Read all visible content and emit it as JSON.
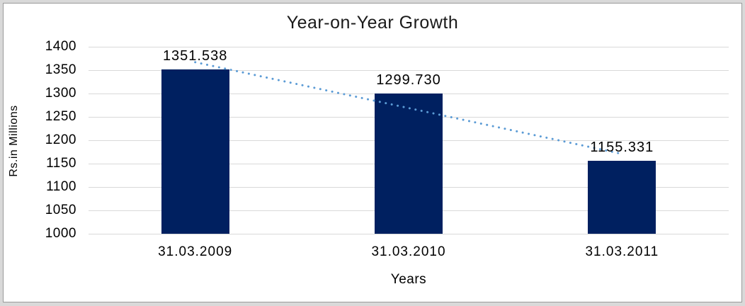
{
  "frame": {
    "band_color": "#D9D9D9",
    "line_color": "#9A9A9A",
    "background": "#FFFFFF"
  },
  "chart_data": {
    "type": "bar",
    "title": "Year-on-Year Growth",
    "xlabel": "Years",
    "ylabel": "Rs.in Millions",
    "categories": [
      "31.03.2009",
      "31.03.2010",
      "31.03.2011"
    ],
    "values": [
      1351.538,
      1299.73,
      1155.331
    ],
    "data_labels": [
      "1351.538",
      "1299.730",
      "1155.331"
    ],
    "ylim": [
      1000,
      1400
    ],
    "ytick_step": 50,
    "ytick_labels": [
      "1000",
      "1050",
      "1100",
      "1150",
      "1200",
      "1250",
      "1300",
      "1350",
      "1400"
    ],
    "grid": true,
    "legend_position": "none",
    "bar_color": "#002060",
    "gridline_color": "#D9D9D9",
    "trendline": {
      "type": "linear",
      "style": "dotted",
      "color": "#5B9BD5"
    }
  }
}
